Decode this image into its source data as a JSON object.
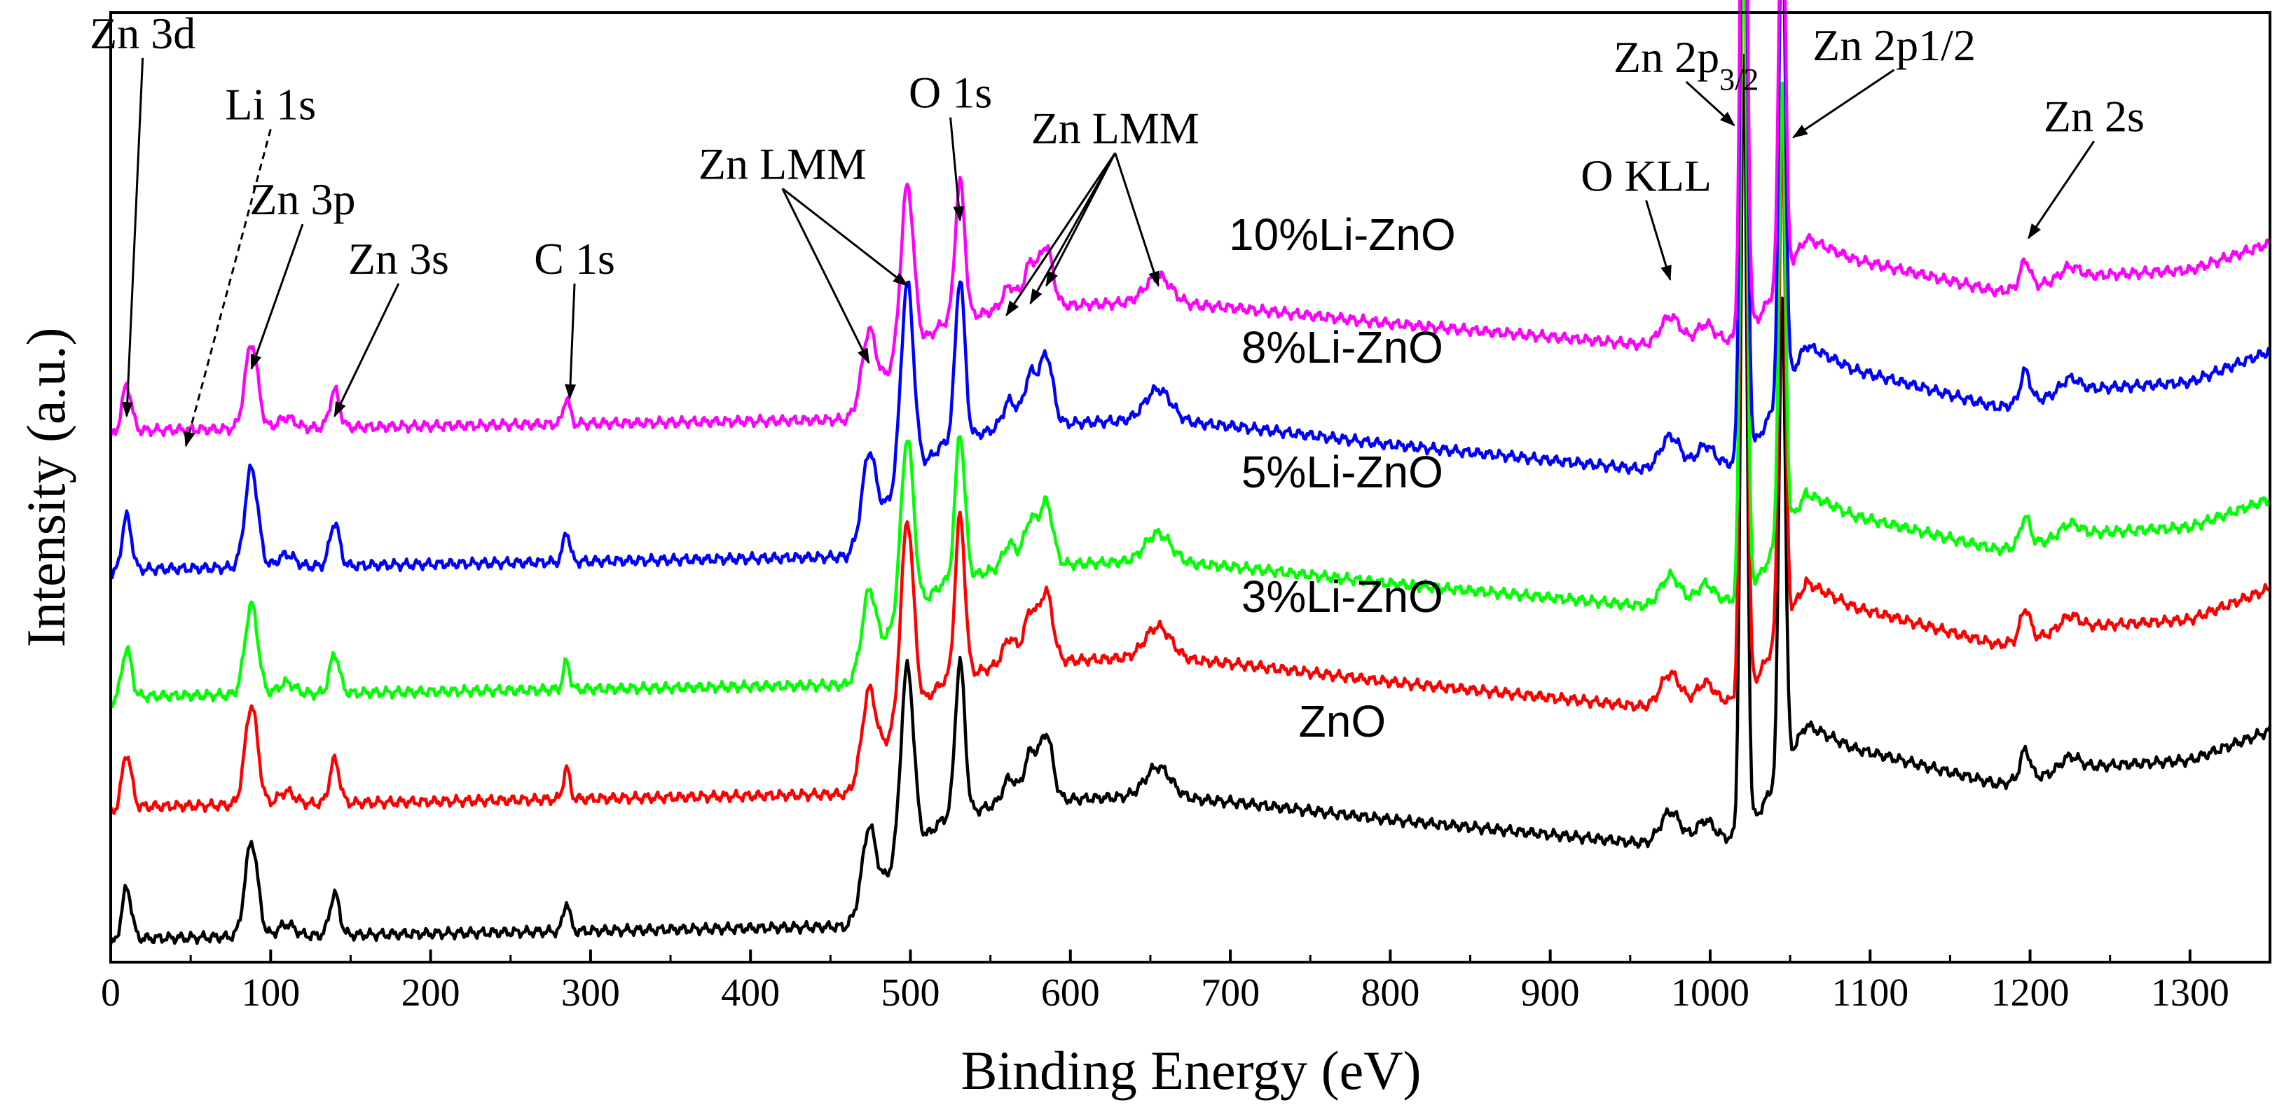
{
  "chart_data": {
    "type": "line",
    "title": "",
    "xlabel": "Binding Energy (eV)",
    "ylabel": "Intensity (a.u.)",
    "xlim": [
      0,
      1350
    ],
    "ylim": [
      0,
      8
    ],
    "grid": false,
    "xticks": [
      "0",
      "100",
      "200",
      "300",
      "400",
      "500",
      "600",
      "700",
      "800",
      "900",
      "1000",
      "1100",
      "1200",
      "1300"
    ],
    "baseline_knots": [
      [
        0,
        0.15
      ],
      [
        20,
        0.2
      ],
      [
        460,
        0.3
      ],
      [
        480,
        0.65
      ],
      [
        520,
        1.2
      ],
      [
        560,
        1.35
      ],
      [
        650,
        1.4
      ],
      [
        700,
        1.35
      ],
      [
        800,
        1.2
      ],
      [
        960,
        1.0
      ],
      [
        1000,
        1.05
      ],
      [
        1015,
        1.05
      ],
      [
        1030,
        1.25
      ],
      [
        1060,
        2.0
      ],
      [
        1090,
        1.8
      ],
      [
        1180,
        1.5
      ],
      [
        1240,
        1.65
      ],
      [
        1300,
        1.7
      ],
      [
        1350,
        1.95
      ]
    ],
    "peaks": [
      [
        10,
        0.45,
        3
      ],
      [
        88,
        0.8,
        4
      ],
      [
        110,
        0.1,
        5
      ],
      [
        140,
        0.35,
        3
      ],
      [
        285,
        0.25,
        2
      ],
      [
        474,
        0.6,
        4
      ],
      [
        498,
        1.6,
        4
      ],
      [
        531,
        1.3,
        3
      ],
      [
        562,
        0.2,
        4
      ],
      [
        575,
        0.4,
        4
      ],
      [
        585,
        0.55,
        4
      ],
      [
        655,
        0.25,
        8
      ],
      [
        975,
        0.25,
        6
      ],
      [
        997,
        0.15,
        5
      ],
      [
        1021,
        6.5,
        2
      ],
      [
        1045,
        4.0,
        2
      ],
      [
        1197,
        0.25,
        3
      ],
      [
        1225,
        0.12,
        6
      ]
    ],
    "series": [
      {
        "name": "ZnO",
        "color": "#000000",
        "offset": 0.0,
        "scale": 1.0
      },
      {
        "name": "3%Li-ZnO",
        "color": "#ff0000",
        "offset": 1.1,
        "scale": 1.05
      },
      {
        "name": "5%Li-ZnO",
        "color": "#00ff00",
        "offset": 2.05,
        "scale": 0.95
      },
      {
        "name": "8%Li-ZnO",
        "color": "#0000ff",
        "offset": 3.1,
        "scale": 1.05
      },
      {
        "name": "10%Li-ZnO",
        "color": "#ff00ff",
        "offset": 4.3,
        "scale": 0.9
      }
    ],
    "series_labels": [
      {
        "text": "ZnO",
        "x": 770,
        "y": 1.9
      },
      {
        "text": "3%Li-ZnO",
        "x": 770,
        "y": 2.95
      },
      {
        "text": "5%Li-ZnO",
        "x": 770,
        "y": 4.0
      },
      {
        "text": "8%Li-ZnO",
        "x": 770,
        "y": 5.05
      },
      {
        "text": "10%Li-ZnO",
        "x": 770,
        "y": 6.0
      }
    ],
    "annotations": [
      {
        "text": "Zn 3d",
        "sub": "",
        "tail": "",
        "x": 20,
        "y": 7.7,
        "arrows": [
          [
            10,
            4.6
          ]
        ],
        "dashed": false
      },
      {
        "text": "Li 1s",
        "sub": "",
        "tail": "",
        "x": 100,
        "y": 7.1,
        "arrows": [
          [
            47,
            4.35
          ]
        ],
        "dashed": true
      },
      {
        "text": "Zn 3p",
        "sub": "",
        "tail": "",
        "x": 120,
        "y": 6.3,
        "arrows": [
          [
            88,
            5.0
          ]
        ],
        "dashed": false
      },
      {
        "text": "Zn 3s",
        "sub": "",
        "tail": "",
        "x": 180,
        "y": 5.8,
        "arrows": [
          [
            140,
            4.6
          ]
        ],
        "dashed": false
      },
      {
        "text": "C 1s",
        "sub": "",
        "tail": "",
        "x": 290,
        "y": 5.8,
        "arrows": [
          [
            287,
            4.75
          ]
        ],
        "dashed": false
      },
      {
        "text": "Zn LMM",
        "sub": "",
        "tail": "",
        "x": 420,
        "y": 6.6,
        "arrows": [
          [
            474,
            5.05
          ],
          [
            498,
            5.7
          ]
        ],
        "dashed": false
      },
      {
        "text": "O 1s",
        "sub": "",
        "tail": "",
        "x": 525,
        "y": 7.2,
        "arrows": [
          [
            531,
            6.25
          ]
        ],
        "dashed": false
      },
      {
        "text": "Zn LMM",
        "sub": "",
        "tail": "",
        "x": 628,
        "y": 6.9,
        "arrows": [
          [
            560,
            5.45
          ],
          [
            575,
            5.55
          ],
          [
            585,
            5.7
          ],
          [
            655,
            5.7
          ]
        ],
        "dashed": false
      },
      {
        "text": "O KLL",
        "sub": "",
        "tail": "",
        "x": 960,
        "y": 6.5,
        "arrows": [
          [
            975,
            5.75
          ]
        ],
        "dashed": false
      },
      {
        "text": "Zn 2p",
        "sub": "3/2",
        "tail": "",
        "x": 985,
        "y": 7.5,
        "arrows": [
          [
            1015,
            7.05
          ]
        ],
        "dashed": false
      },
      {
        "text": "Zn 2p1/2",
        "sub": "",
        "tail": "",
        "x": 1115,
        "y": 7.6,
        "arrows": [
          [
            1052,
            6.95
          ]
        ],
        "dashed": false
      },
      {
        "text": "Zn 2s",
        "sub": "",
        "tail": "",
        "x": 1240,
        "y": 7.0,
        "arrows": [
          [
            1199,
            6.1
          ]
        ],
        "dashed": false
      }
    ]
  }
}
